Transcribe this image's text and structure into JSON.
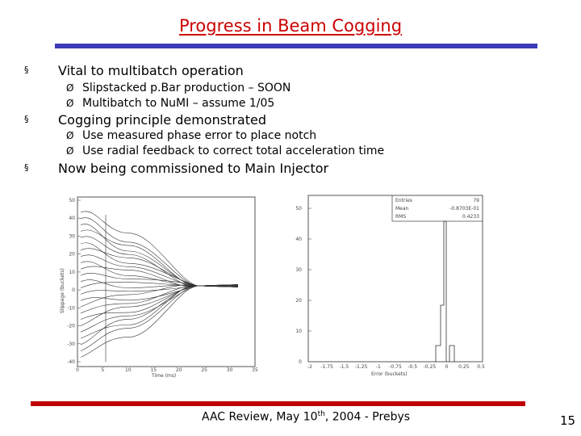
{
  "slide": {
    "title": "Progress in Beam Cogging",
    "bullets": [
      {
        "marker": "§",
        "text": "Vital to multibatch operation",
        "sub": [
          {
            "marker": "Ø",
            "text": "Slipstacked p.Bar production – SOON"
          },
          {
            "marker": "Ø",
            "text": "Multibatch to NuMI – assume 1/05"
          }
        ]
      },
      {
        "marker": "§",
        "text": "Cogging principle demonstrated",
        "sub": [
          {
            "marker": "Ø",
            "text": "Use measured phase error to place notch"
          },
          {
            "marker": "Ø",
            "text": "Use radial feedback to correct total acceleration time"
          }
        ]
      },
      {
        "marker": "§",
        "text": "Now being commissioned to Main Injector",
        "sub": []
      }
    ],
    "footer": {
      "prefix": "AAC Review, May 10",
      "sup": "th",
      "suffix": ", 2004 - Prebys"
    },
    "page_number": "15"
  },
  "left_plot": {
    "ylabel": "Slippage (buckets)",
    "xlabel": "Time (ms)",
    "yticks": [
      "50",
      "40",
      "30",
      "20",
      "10",
      "0",
      "-10",
      "-20",
      "-30",
      "-40"
    ],
    "xticks": [
      "0",
      "5",
      "10",
      "15",
      "20",
      "25",
      "30",
      "35"
    ]
  },
  "right_plot": {
    "stats": [
      {
        "label": "Entries",
        "value": "79"
      },
      {
        "label": "Mean",
        "value": "-0.8703E-01"
      },
      {
        "label": "RMS",
        "value": "0.4233"
      }
    ],
    "yticks": [
      "50",
      "40",
      "30",
      "20",
      "10",
      "0"
    ],
    "xticks": [
      "-2",
      "-1.75",
      "-1.5",
      "-1.25",
      "-1",
      "-0.75",
      "-0.5",
      "-0.25",
      "0",
      "0.25",
      "0.5"
    ],
    "xlabel": "Error (buckets)"
  },
  "colors": {
    "title": "#cc0000",
    "top_rule": "#3b3bb8",
    "bottom_rule": "#c00000"
  }
}
